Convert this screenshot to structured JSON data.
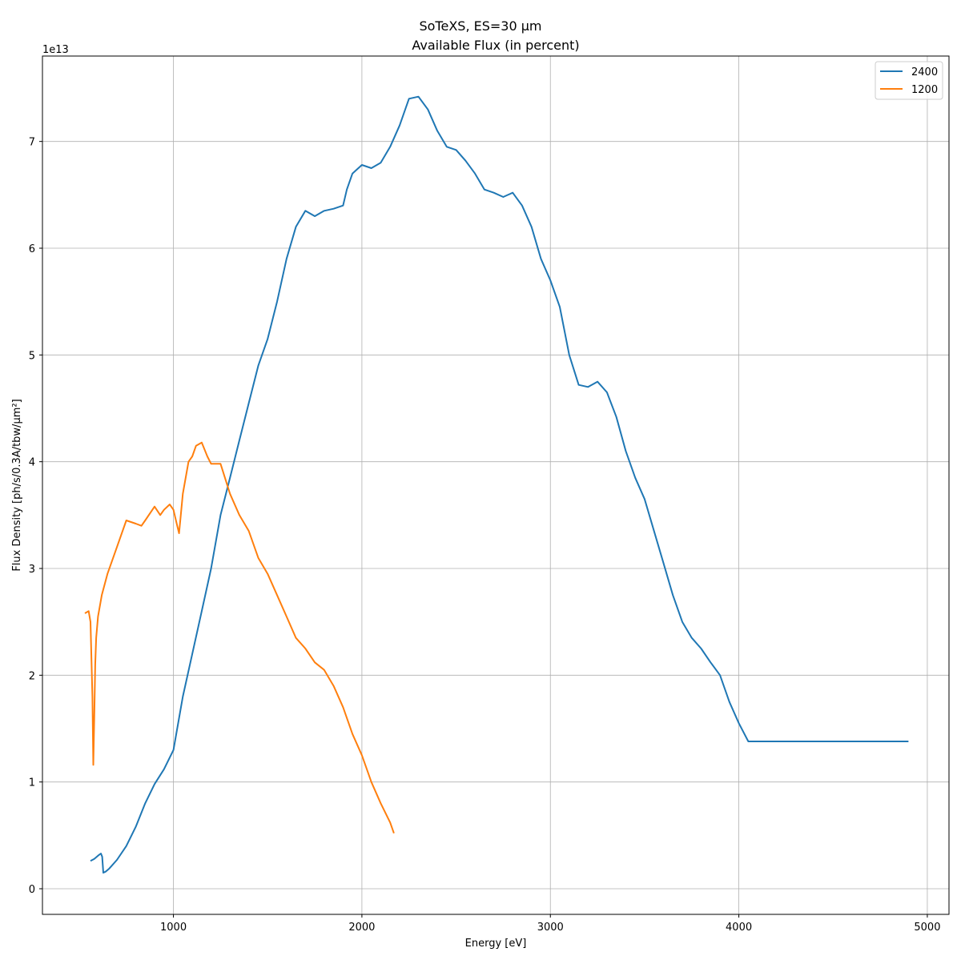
{
  "figure": {
    "suptitle": "SoTeXS, ES=30 µm",
    "title": "Available Flux (in percent)"
  },
  "chart_data": {
    "type": "line",
    "title": "Available Flux (in percent)",
    "suptitle": "SoTeXS, ES=30 µm",
    "xlabel": "Energy [eV]",
    "ylabel": "Flux Density [ph/s/0.3A/tbw/µm²]",
    "y_offset_label": "1e13",
    "y_scale_factor": 10000000000000.0,
    "xlim": [
      305,
      5115
    ],
    "ylim": [
      -0.24,
      7.8
    ],
    "xticks": [
      1000,
      2000,
      3000,
      4000,
      5000
    ],
    "xtick_labels": [
      "1000",
      "2000",
      "3000",
      "4000",
      "5000"
    ],
    "yticks": [
      0,
      1,
      2,
      3,
      4,
      5,
      6,
      7
    ],
    "ytick_labels": [
      "0",
      "1",
      "2",
      "3",
      "4",
      "5",
      "6",
      "7"
    ],
    "grid": true,
    "legend_position": "top-right",
    "series": [
      {
        "name": "2400",
        "color": "#1f77b4",
        "x": [
          560,
          580,
          600,
          615,
          622,
          628,
          640,
          660,
          700,
          750,
          800,
          850,
          900,
          950,
          1000,
          1050,
          1100,
          1150,
          1200,
          1250,
          1300,
          1350,
          1400,
          1450,
          1500,
          1550,
          1600,
          1650,
          1700,
          1750,
          1800,
          1850,
          1900,
          1920,
          1950,
          2000,
          2050,
          2100,
          2150,
          2200,
          2250,
          2300,
          2350,
          2400,
          2450,
          2500,
          2550,
          2600,
          2650,
          2700,
          2750,
          2800,
          2850,
          2900,
          2950,
          3000,
          3050,
          3100,
          3150,
          3200,
          3250,
          3300,
          3350,
          3400,
          3450,
          3500,
          3550,
          3600,
          3650,
          3700,
          3750,
          3800,
          3850,
          3900,
          3950,
          4000,
          4050,
          4100,
          4150,
          4200,
          4250,
          4300,
          4350,
          4400,
          4450,
          4500,
          4550,
          4600,
          4650,
          4700,
          4750,
          4800,
          4850,
          4900
        ],
        "values": [
          0.26,
          0.28,
          0.31,
          0.33,
          0.3,
          0.15,
          0.16,
          0.19,
          0.27,
          0.4,
          0.58,
          0.8,
          0.98,
          1.12,
          1.3,
          1.8,
          2.2,
          2.6,
          3.0,
          3.5,
          3.85,
          4.2,
          4.55,
          4.9,
          5.15,
          5.5,
          5.9,
          6.2,
          6.35,
          6.3,
          6.35,
          6.37,
          6.4,
          6.55,
          6.7,
          6.78,
          6.75,
          6.8,
          6.95,
          7.15,
          7.4,
          7.42,
          7.3,
          7.1,
          6.95,
          6.92,
          6.82,
          6.7,
          6.55,
          6.52,
          6.48,
          6.52,
          6.4,
          6.2,
          5.9,
          5.7,
          5.45,
          5.0,
          4.72,
          4.7,
          4.75,
          4.65,
          4.42,
          4.1,
          3.85,
          3.65,
          3.35,
          3.05,
          2.75,
          2.5,
          2.35,
          2.25,
          2.12,
          2.0,
          1.75,
          1.55,
          1.38,
          1.38,
          1.38,
          1.38,
          1.38,
          1.38,
          1.38,
          1.38,
          1.38,
          1.38,
          1.38,
          1.38,
          1.38,
          1.38,
          1.38,
          1.38,
          1.38,
          1.38
        ]
      },
      {
        "name": "1200",
        "color": "#ff7f0e",
        "x": [
          530,
          550,
          560,
          570,
          575,
          580,
          585,
          590,
          600,
          620,
          650,
          700,
          750,
          800,
          830,
          850,
          900,
          930,
          950,
          980,
          1000,
          1020,
          1030,
          1050,
          1080,
          1100,
          1120,
          1150,
          1180,
          1200,
          1250,
          1300,
          1350,
          1400,
          1450,
          1500,
          1550,
          1600,
          1650,
          1700,
          1750,
          1800,
          1850,
          1900,
          1950,
          2000,
          2050,
          2100,
          2150,
          2170
        ],
        "values": [
          2.58,
          2.6,
          2.5,
          1.8,
          1.16,
          1.6,
          2.1,
          2.35,
          2.55,
          2.75,
          2.95,
          3.2,
          3.45,
          3.42,
          3.4,
          3.45,
          3.58,
          3.5,
          3.55,
          3.6,
          3.55,
          3.4,
          3.33,
          3.7,
          4.0,
          4.05,
          4.15,
          4.18,
          4.05,
          3.98,
          3.98,
          3.7,
          3.5,
          3.35,
          3.1,
          2.95,
          2.75,
          2.55,
          2.35,
          2.25,
          2.12,
          2.05,
          1.9,
          1.7,
          1.45,
          1.25,
          1.0,
          0.8,
          0.62,
          0.52
        ]
      }
    ]
  }
}
